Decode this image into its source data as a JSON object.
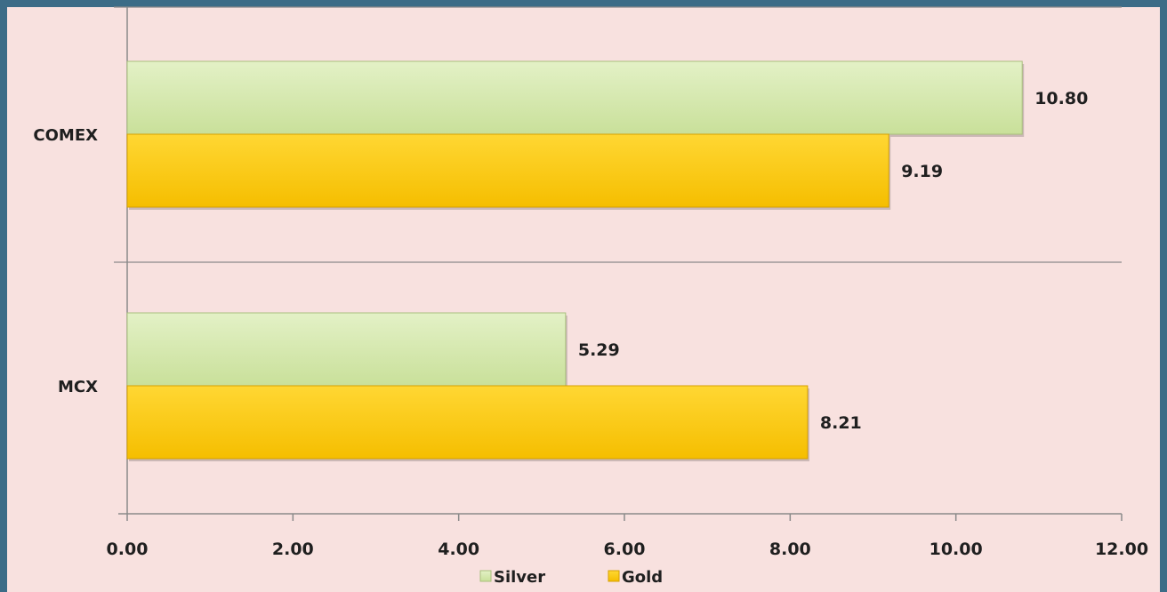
{
  "chart_data": {
    "type": "bar",
    "orientation": "horizontal",
    "categories": [
      "COMEX",
      "MCX"
    ],
    "series": [
      {
        "name": "Silver",
        "color": "#d3e8ab",
        "values": [
          10.8,
          5.29
        ],
        "labels": [
          "10.80",
          "5.29"
        ]
      },
      {
        "name": "Gold",
        "color": "#ffcc00",
        "values": [
          9.19,
          8.21
        ],
        "labels": [
          "9.19",
          "8.21"
        ]
      }
    ],
    "xlim": [
      0,
      12
    ],
    "xticks": [
      0,
      2,
      4,
      6,
      8,
      10,
      12
    ],
    "xtick_labels": [
      "0.00",
      "2.00",
      "4.00",
      "6.00",
      "8.00",
      "10.00",
      "12.00"
    ],
    "legend_position": "bottom",
    "grid": false
  }
}
